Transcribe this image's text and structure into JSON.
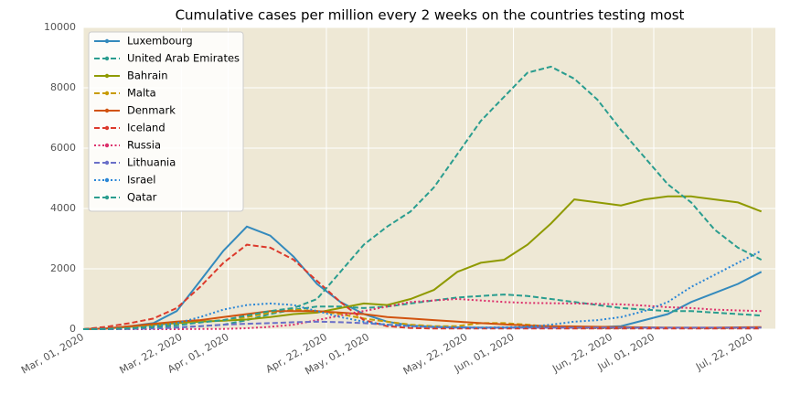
{
  "chart_data": {
    "type": "line",
    "title": "Cumulative cases per million every 2 weeks on the countries testing most",
    "x": [
      "2020-03-01",
      "2020-03-06",
      "2020-03-11",
      "2020-03-16",
      "2020-03-21",
      "2020-03-26",
      "2020-03-31",
      "2020-04-05",
      "2020-04-10",
      "2020-04-15",
      "2020-04-20",
      "2020-04-25",
      "2020-04-30",
      "2020-05-05",
      "2020-05-10",
      "2020-05-15",
      "2020-05-20",
      "2020-05-25",
      "2020-05-30",
      "2020-06-04",
      "2020-06-09",
      "2020-06-14",
      "2020-06-19",
      "2020-06-24",
      "2020-06-29",
      "2020-07-04",
      "2020-07-09",
      "2020-07-14",
      "2020-07-19",
      "2020-07-24"
    ],
    "xlim": [
      "2020-03-01",
      "2020-07-27"
    ],
    "xticks": [
      {
        "value": "2020-03-01",
        "label": "Mar, 01, 2020"
      },
      {
        "value": "2020-03-22",
        "label": "Mar, 22, 2020"
      },
      {
        "value": "2020-04-01",
        "label": "Apr, 01, 2020"
      },
      {
        "value": "2020-04-22",
        "label": "Apr, 22, 2020"
      },
      {
        "value": "2020-05-01",
        "label": "May, 01, 2020"
      },
      {
        "value": "2020-05-22",
        "label": "May, 22, 2020"
      },
      {
        "value": "2020-06-01",
        "label": "Jun, 01, 2020"
      },
      {
        "value": "2020-06-22",
        "label": "Jun, 22, 2020"
      },
      {
        "value": "2020-07-01",
        "label": "Jul, 01, 2020"
      },
      {
        "value": "2020-07-22",
        "label": "Jul, 22, 2020"
      }
    ],
    "ylim": [
      0,
      10000
    ],
    "yticks": [
      0,
      2000,
      4000,
      6000,
      8000,
      10000
    ],
    "grid": true,
    "legend": "upper left",
    "series": [
      {
        "name": "Luxembourg",
        "color": "#348abd",
        "style": "solid",
        "values": [
          0,
          20,
          100,
          200,
          600,
          1600,
          2600,
          3400,
          3100,
          2400,
          1500,
          900,
          500,
          250,
          120,
          80,
          60,
          50,
          50,
          60,
          60,
          60,
          70,
          100,
          300,
          500,
          900,
          1200,
          1500,
          1900
        ]
      },
      {
        "name": "United Arab Emirates",
        "color": "#2a9d8f",
        "style": "dashed",
        "values": [
          0,
          5,
          10,
          30,
          60,
          100,
          150,
          300,
          500,
          650,
          750,
          750,
          700,
          750,
          850,
          950,
          1050,
          1100,
          1150,
          1100,
          1000,
          900,
          800,
          700,
          650,
          600,
          600,
          550,
          500,
          450
        ]
      },
      {
        "name": "Bahrain",
        "color": "#8f9a00",
        "style": "solid",
        "values": [
          0,
          20,
          80,
          150,
          200,
          250,
          280,
          320,
          400,
          500,
          550,
          700,
          850,
          800,
          1000,
          1300,
          1900,
          2200,
          2300,
          2800,
          3500,
          4300,
          4200,
          4100,
          4300,
          4400,
          4400,
          4300,
          4200,
          3900
        ]
      },
      {
        "name": "Malta",
        "color": "#c89b00",
        "style": "dashed",
        "values": [
          0,
          10,
          50,
          100,
          150,
          250,
          300,
          400,
          550,
          650,
          600,
          500,
          350,
          250,
          150,
          100,
          100,
          200,
          200,
          150,
          80,
          40,
          30,
          30,
          50,
          50,
          40,
          30,
          40,
          60
        ]
      },
      {
        "name": "Denmark",
        "color": "#d1530f",
        "style": "solid",
        "values": [
          0,
          20,
          100,
          180,
          250,
          300,
          400,
          500,
          600,
          600,
          600,
          550,
          500,
          400,
          350,
          300,
          250,
          200,
          160,
          120,
          100,
          90,
          80,
          70,
          60,
          50,
          50,
          50,
          60,
          70
        ]
      },
      {
        "name": "Iceland",
        "color": "#dc3a2c",
        "style": "dashed",
        "values": [
          0,
          80,
          200,
          350,
          700,
          1400,
          2200,
          2800,
          2700,
          2300,
          1600,
          900,
          300,
          100,
          40,
          20,
          20,
          20,
          20,
          20,
          20,
          20,
          20,
          20,
          20,
          20,
          20,
          20,
          20,
          20
        ]
      },
      {
        "name": "Russia",
        "color": "#dc2f6b",
        "style": "dotted",
        "values": [
          0,
          0,
          0,
          0,
          0,
          5,
          10,
          30,
          80,
          150,
          300,
          450,
          600,
          750,
          900,
          950,
          1000,
          950,
          900,
          870,
          860,
          850,
          840,
          820,
          780,
          730,
          700,
          650,
          620,
          600
        ]
      },
      {
        "name": "Lithuania",
        "color": "#6a6fc8",
        "style": "dashed",
        "values": [
          0,
          0,
          10,
          20,
          50,
          100,
          150,
          180,
          200,
          230,
          250,
          230,
          200,
          150,
          100,
          70,
          50,
          50,
          50,
          50,
          50,
          50,
          50,
          50,
          50,
          50,
          50,
          50,
          50,
          50
        ]
      },
      {
        "name": "Israel",
        "color": "#2a86d6",
        "style": "dotted",
        "values": [
          0,
          5,
          30,
          100,
          200,
          400,
          650,
          800,
          850,
          800,
          600,
          400,
          250,
          150,
          100,
          80,
          60,
          50,
          60,
          80,
          150,
          250,
          300,
          400,
          600,
          900,
          1400,
          1800,
          2200,
          2600
        ]
      },
      {
        "name": "Qatar",
        "color": "#2a9d8f",
        "style": "dashed",
        "values": [
          0,
          10,
          30,
          70,
          130,
          220,
          300,
          450,
          600,
          700,
          1000,
          1900,
          2800,
          3400,
          3900,
          4700,
          5800,
          6900,
          7700,
          8500,
          8700,
          8300,
          7600,
          6600,
          5700,
          4800,
          4200,
          3300,
          2700,
          2300
        ]
      }
    ]
  }
}
